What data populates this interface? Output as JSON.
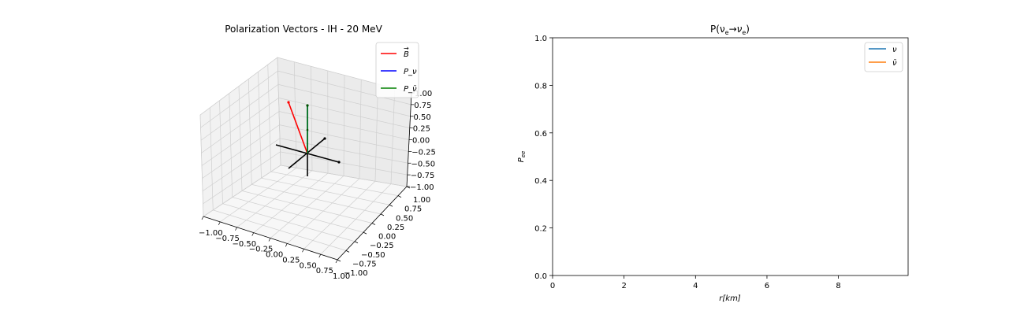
{
  "chart_data": [
    {
      "type": "3d-vector",
      "title": "Polarization Vectors - IH - 20 MeV",
      "xlim": [
        -1.0,
        1.0
      ],
      "ylim": [
        -1.0,
        1.0
      ],
      "zlim": [
        -1.0,
        1.0
      ],
      "x_ticks": [
        "−1.00",
        "−0.75",
        "−0.50",
        "−0.25",
        "0.00",
        "0.25",
        "0.50",
        "0.75",
        "1.00"
      ],
      "y_ticks": [
        "−1.00",
        "−0.75",
        "−0.50",
        "−0.25",
        "0.00",
        "0.25",
        "0.50",
        "0.75",
        "1.00"
      ],
      "z_ticks": [
        "−1.00",
        "−0.75",
        "−0.50",
        "−0.25",
        "0.00",
        "0.25",
        "0.50",
        "0.75",
        "1.00"
      ],
      "grid": true,
      "legend_position": "top-right",
      "series": [
        {
          "name": "B",
          "color": "#ff0000",
          "vector": [
            -0.45,
            0.0,
            0.85
          ]
        },
        {
          "name": "P_ν",
          "color": "#0000ff",
          "vector": [
            0.0,
            0.0,
            0.82
          ]
        },
        {
          "name": "P_ν̄",
          "color": "#008000",
          "vector": [
            0.0,
            0.0,
            0.82
          ]
        }
      ],
      "reference_axes_color": "#000000"
    },
    {
      "type": "line",
      "title": "P(ν",
      "title_sub1": "e",
      "title_arrow": "→",
      "title_nu": "ν",
      "title_sub2": "e",
      "title_close": ")",
      "xlabel": "r[km]",
      "ylabel": "P",
      "ylabel_sub": "ee",
      "xlim": [
        0,
        9.95
      ],
      "ylim": [
        0.0,
        1.0
      ],
      "x_ticks": [
        0,
        2,
        4,
        6,
        8
      ],
      "y_ticks": [
        "0.0",
        "0.2",
        "0.4",
        "0.6",
        "0.8",
        "1.0"
      ],
      "grid": false,
      "legend_position": "top-right",
      "series": [
        {
          "name": "ν",
          "color": "#1f77b4",
          "x": [],
          "y": []
        },
        {
          "name": "ν̄",
          "color": "#ff7f0e",
          "x": [],
          "y": []
        }
      ]
    }
  ]
}
